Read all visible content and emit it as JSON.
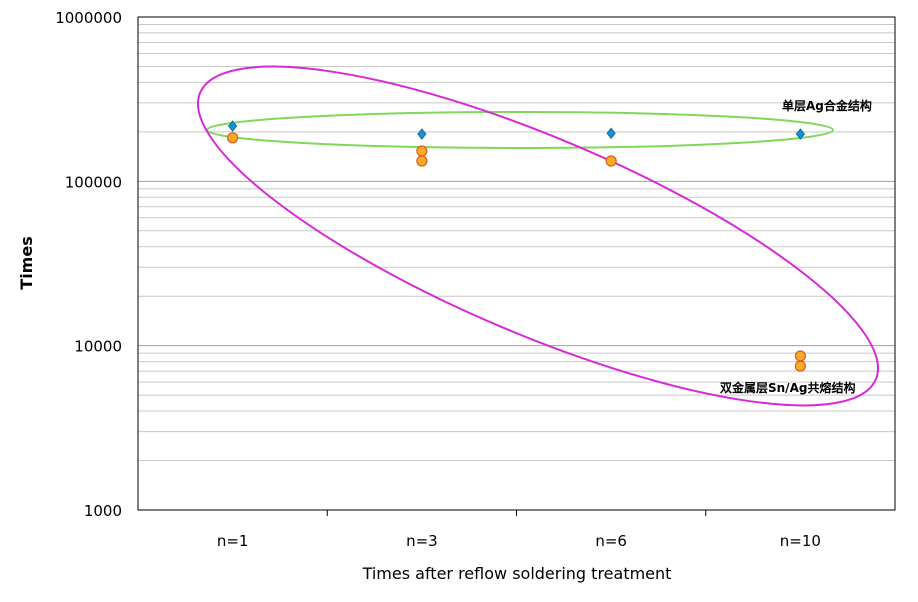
{
  "chart_data": {
    "type": "scatter",
    "title": "",
    "xlabel": "Times after reflow soldering treatment",
    "ylabel": "Times",
    "categories": [
      "n=1",
      "n=3",
      "n=6",
      "n=10"
    ],
    "y_scale": "log",
    "ylim": [
      1000,
      1000000
    ],
    "y_ticks": [
      "1000",
      "10000",
      "100000",
      "1000000"
    ],
    "grid": true,
    "series": [
      {
        "marker": "diamond",
        "color": "#1e8fd0",
        "points": [
          {
            "x": "n=1",
            "y": 217000
          },
          {
            "x": "n=3",
            "y": 194000
          },
          {
            "x": "n=6",
            "y": 196000
          },
          {
            "x": "n=10",
            "y": 194000
          }
        ]
      },
      {
        "marker": "circle",
        "color": "#f7a928",
        "points": [
          {
            "x": "n=1",
            "y": 184000
          },
          {
            "x": "n=3",
            "y": 153000
          },
          {
            "x": "n=3",
            "y": 133000
          },
          {
            "x": "n=6",
            "y": 133000
          },
          {
            "x": "n=10",
            "y": 8650
          },
          {
            "x": "n=10",
            "y": 7510
          }
        ]
      }
    ],
    "annotations": [
      {
        "text": "单层Ag合金结构",
        "color": "#7ed957"
      },
      {
        "text": "双金属层Sn/Ag共熔结构",
        "color": "#d62ad6"
      }
    ]
  }
}
